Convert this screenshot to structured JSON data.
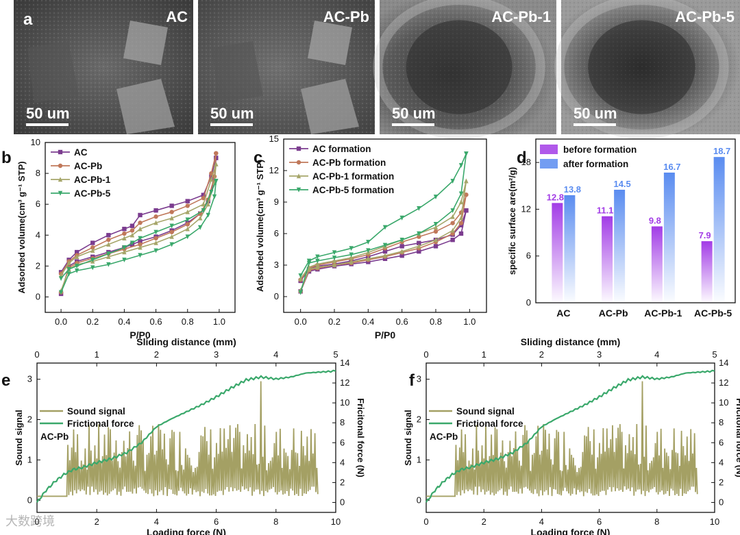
{
  "figure": {
    "panel_letters": [
      "a",
      "b",
      "c",
      "d",
      "e",
      "f"
    ],
    "sem_images": [
      {
        "label": "AC",
        "scale": "50 um"
      },
      {
        "label": "AC-Pb",
        "scale": "50 um"
      },
      {
        "label": "AC-Pb-1",
        "scale": "50 um"
      },
      {
        "label": "AC-Pb-5",
        "scale": "50 um"
      }
    ],
    "watermark": "大数跨境"
  },
  "colors": {
    "AC": "#7b3c8f",
    "AC-Pb": "#c0785a",
    "AC-Pb-1": "#a6a66a",
    "AC-Pb-5": "#3aa86b",
    "before": "#a23ce6",
    "after": "#5a8cf0",
    "sound": "#a4a064",
    "friction": "#3aa86b"
  },
  "chart_data": [
    {
      "id": "b",
      "type": "line",
      "xlabel": "P/P0",
      "ylabel": "Adsorbed volume(cm³ g⁻¹ STP)",
      "xlim": [
        -0.1,
        1.1
      ],
      "ylim": [
        -1,
        10
      ],
      "xticks": [
        "0.0",
        "0.2",
        "0.4",
        "0.6",
        "0.8",
        "1.0"
      ],
      "yticks": [
        "0",
        "2",
        "4",
        "6",
        "8",
        "10"
      ],
      "legend": [
        "AC",
        "AC-Pb",
        "AC-Pb-1",
        "AC-Pb-5"
      ],
      "series": [
        {
          "name": "AC",
          "x": [
            0.0,
            0.05,
            0.1,
            0.2,
            0.3,
            0.4,
            0.45,
            0.5,
            0.6,
            0.7,
            0.8,
            0.88,
            0.93,
            0.97,
            0.98,
            0.98,
            0.95,
            0.9,
            0.8,
            0.7,
            0.6,
            0.5,
            0.45,
            0.4,
            0.3,
            0.2,
            0.1,
            0.05,
            0.0
          ],
          "y": [
            0.2,
            2.0,
            2.3,
            2.6,
            2.9,
            3.2,
            3.4,
            3.6,
            3.9,
            4.3,
            4.8,
            5.4,
            6.2,
            7.5,
            9.0,
            9.0,
            7.8,
            6.6,
            6.2,
            5.9,
            5.6,
            5.3,
            4.6,
            4.4,
            4.0,
            3.5,
            2.9,
            2.4,
            1.6
          ]
        },
        {
          "name": "AC-Pb",
          "x": [
            0.0,
            0.05,
            0.1,
            0.2,
            0.3,
            0.4,
            0.5,
            0.6,
            0.7,
            0.8,
            0.88,
            0.93,
            0.97,
            0.98,
            0.98,
            0.95,
            0.9,
            0.8,
            0.7,
            0.6,
            0.5,
            0.45,
            0.4,
            0.3,
            0.2,
            0.1,
            0.05,
            0.0
          ],
          "y": [
            0.3,
            1.9,
            2.2,
            2.5,
            2.8,
            3.1,
            3.4,
            3.8,
            4.2,
            4.7,
            5.4,
            6.3,
            7.8,
            9.3,
            9.3,
            8.0,
            6.4,
            5.9,
            5.5,
            5.2,
            4.8,
            4.3,
            4.1,
            3.7,
            3.2,
            2.7,
            2.3,
            1.5
          ]
        },
        {
          "name": "AC-Pb-1",
          "x": [
            0.0,
            0.05,
            0.1,
            0.2,
            0.3,
            0.4,
            0.5,
            0.6,
            0.7,
            0.8,
            0.88,
            0.93,
            0.97,
            0.98,
            0.98,
            0.95,
            0.9,
            0.8,
            0.7,
            0.6,
            0.5,
            0.45,
            0.4,
            0.3,
            0.2,
            0.1,
            0.05,
            0.0
          ],
          "y": [
            0.4,
            1.8,
            2.1,
            2.3,
            2.6,
            2.9,
            3.2,
            3.5,
            3.9,
            4.4,
            5.1,
            6.0,
            7.4,
            8.6,
            8.6,
            7.6,
            6.0,
            5.5,
            5.1,
            4.8,
            4.4,
            4.0,
            3.8,
            3.4,
            3.0,
            2.6,
            2.2,
            1.4
          ]
        },
        {
          "name": "AC-Pb-5",
          "x": [
            0.0,
            0.05,
            0.1,
            0.2,
            0.3,
            0.4,
            0.5,
            0.6,
            0.7,
            0.8,
            0.88,
            0.93,
            0.97,
            0.98,
            0.98,
            0.95,
            0.9,
            0.8,
            0.7,
            0.6,
            0.5,
            0.45,
            0.4,
            0.3,
            0.2,
            0.1,
            0.05,
            0.0
          ],
          "y": [
            0.3,
            1.5,
            1.7,
            1.9,
            2.1,
            2.4,
            2.7,
            3.0,
            3.4,
            3.9,
            4.5,
            5.3,
            6.5,
            7.5,
            7.5,
            6.8,
            5.6,
            5.0,
            4.6,
            4.2,
            3.8,
            3.5,
            3.2,
            2.8,
            2.4,
            2.0,
            1.8,
            1.2
          ]
        }
      ]
    },
    {
      "id": "c",
      "type": "line",
      "xlabel": "P/P0",
      "ylabel": "Adsorbed volume(cm³ g⁻¹ STP)",
      "xlim": [
        -0.1,
        1.1
      ],
      "ylim": [
        -1.5,
        15
      ],
      "xticks": [
        "0.0",
        "0.2",
        "0.4",
        "0.6",
        "0.8",
        "1.0"
      ],
      "yticks": [
        "0",
        "3",
        "6",
        "9",
        "12",
        "15"
      ],
      "legend": [
        "AC formation",
        "AC-Pb formation",
        "AC-Pb-1 formation",
        "AC-Pb-5 formation"
      ],
      "series": [
        {
          "name": "AC formation",
          "x": [
            0.0,
            0.05,
            0.1,
            0.2,
            0.3,
            0.4,
            0.5,
            0.6,
            0.7,
            0.8,
            0.9,
            0.95,
            0.98,
            0.98,
            0.95,
            0.9,
            0.8,
            0.7,
            0.6,
            0.5,
            0.4,
            0.3,
            0.2,
            0.1,
            0.05,
            0.0
          ],
          "y": [
            0.5,
            2.4,
            2.6,
            2.9,
            3.1,
            3.3,
            3.6,
            3.9,
            4.3,
            4.8,
            5.4,
            6.0,
            8.2,
            8.2,
            6.8,
            5.9,
            5.4,
            5.1,
            4.8,
            4.3,
            3.8,
            3.4,
            3.1,
            2.9,
            2.6,
            1.5
          ]
        },
        {
          "name": "AC-Pb formation",
          "x": [
            0.0,
            0.05,
            0.1,
            0.2,
            0.3,
            0.4,
            0.5,
            0.6,
            0.7,
            0.8,
            0.9,
            0.95,
            0.98,
            0.98,
            0.95,
            0.9,
            0.8,
            0.7,
            0.6,
            0.5,
            0.4,
            0.3,
            0.2,
            0.1,
            0.05,
            0.0
          ],
          "y": [
            0.5,
            2.5,
            2.7,
            3.0,
            3.2,
            3.5,
            3.8,
            4.2,
            4.6,
            5.2,
            6.0,
            7.0,
            9.7,
            9.7,
            8.0,
            7.0,
            6.2,
            5.7,
            5.2,
            4.6,
            4.0,
            3.6,
            3.3,
            3.0,
            2.7,
            1.6
          ]
        },
        {
          "name": "AC-Pb-1 formation",
          "x": [
            0.0,
            0.05,
            0.1,
            0.2,
            0.3,
            0.4,
            0.5,
            0.6,
            0.7,
            0.8,
            0.9,
            0.95,
            0.98,
            0.98,
            0.95,
            0.9,
            0.8,
            0.7,
            0.6,
            0.5,
            0.4,
            0.3,
            0.2,
            0.1,
            0.05,
            0.0
          ],
          "y": [
            0.6,
            2.6,
            2.8,
            3.0,
            3.3,
            3.6,
            3.9,
            4.3,
            4.8,
            5.4,
            6.3,
            7.5,
            11.0,
            11.0,
            9.0,
            7.6,
            6.6,
            6.0,
            5.4,
            4.8,
            4.2,
            3.7,
            3.4,
            3.1,
            2.8,
            1.7
          ]
        },
        {
          "name": "AC-Pb-5 formation",
          "x": [
            0.0,
            0.05,
            0.1,
            0.2,
            0.3,
            0.4,
            0.5,
            0.6,
            0.7,
            0.8,
            0.9,
            0.95,
            0.98,
            0.98,
            0.95,
            0.9,
            0.8,
            0.7,
            0.6,
            0.5,
            0.4,
            0.3,
            0.2,
            0.1,
            0.05,
            0.0
          ],
          "y": [
            0.4,
            3.2,
            3.4,
            3.7,
            4.0,
            4.4,
            4.9,
            5.4,
            6.0,
            6.9,
            8.2,
            9.8,
            13.6,
            13.6,
            12.5,
            11.0,
            9.5,
            8.4,
            7.5,
            6.6,
            5.2,
            4.6,
            4.2,
            3.8,
            3.4,
            2.0
          ]
        }
      ]
    },
    {
      "id": "d",
      "type": "bar",
      "ylabel": "specific surface are(m²/g)",
      "ylim": [
        0,
        21
      ],
      "yticks": [
        "0",
        "6",
        "12",
        "18"
      ],
      "categories": [
        "AC",
        "AC-Pb",
        "AC-Pb-1",
        "AC-Pb-5"
      ],
      "legend": [
        "before formation",
        "after formation"
      ],
      "series": [
        {
          "name": "before formation",
          "values": [
            12.8,
            11.1,
            9.8,
            7.9
          ],
          "labels": [
            "12.8",
            "11.1",
            "9.8",
            "7.9"
          ]
        },
        {
          "name": "after formation",
          "values": [
            13.8,
            14.5,
            16.7,
            18.7
          ],
          "labels": [
            "13.8",
            "14.5",
            "16.7",
            "18.7"
          ]
        }
      ]
    },
    {
      "id": "e",
      "type": "line",
      "xlabel": "Loading force (N)",
      "ylabel": "Sound signal",
      "y2label": "Fricitonal force (N)",
      "top_xlabel": "Sliding distance (mm)",
      "xlim": [
        0,
        10
      ],
      "ylim": [
        -0.3,
        3.4
      ],
      "y2lim": [
        -1,
        14
      ],
      "xticks": [
        "0",
        "2",
        "4",
        "6",
        "8",
        "10"
      ],
      "top_xticks": [
        "0",
        "1",
        "2",
        "3",
        "4",
        "5"
      ],
      "yticks": [
        "0",
        "1",
        "2",
        "3"
      ],
      "y2ticks": [
        "0",
        "2",
        "4",
        "6",
        "8",
        "10",
        "12",
        "14"
      ],
      "legend": [
        "Sound signal",
        "Frictional force"
      ],
      "annotation": "AC-Pb",
      "friction": {
        "x": [
          0,
          0.3,
          0.6,
          0.9,
          1.2,
          1.5,
          2,
          2.5,
          3,
          3.5,
          4,
          4.5,
          5,
          5.5,
          6,
          6.5,
          7,
          7.5,
          8,
          8.5,
          9,
          9.5,
          10
        ],
        "y": [
          0,
          1.2,
          2.1,
          2.8,
          3.3,
          3.5,
          4.0,
          4.4,
          5.0,
          6.0,
          7.6,
          8.4,
          9.1,
          9.8,
          10.6,
          11.5,
          12.3,
          12.6,
          12.4,
          12.6,
          13.0,
          13.1,
          13.2
        ]
      },
      "sound": {
        "start": 1.0,
        "end": 9.4,
        "spike_x": 7.5,
        "spike_y": 2.95,
        "baseline": 0.1,
        "ramp": [
          [
            0,
            0.1
          ],
          [
            1.0,
            0.1
          ]
        ]
      }
    },
    {
      "id": "f",
      "type": "line",
      "xlabel": "Loading force (N)",
      "ylabel": "Sound signal",
      "y2label": "Fricitonal force (N)",
      "top_xlabel": "Sliding distance (mm)",
      "xlim": [
        0,
        10
      ],
      "ylim": [
        -0.3,
        3.4
      ],
      "y2lim": [
        -1,
        14
      ],
      "xticks": [
        "0",
        "2",
        "4",
        "6",
        "8",
        "10"
      ],
      "top_xticks": [
        "0",
        "1",
        "2",
        "3",
        "4",
        "5"
      ],
      "yticks": [
        "0",
        "1",
        "2",
        "3"
      ],
      "y2ticks": [
        "0",
        "2",
        "4",
        "6",
        "8",
        "10",
        "12",
        "14"
      ],
      "legend": [
        "Sound signal",
        "Frictional force"
      ],
      "annotation": "AC-Pb",
      "friction": {
        "x": [
          0,
          0.3,
          0.6,
          0.9,
          1.2,
          1.5,
          2,
          2.5,
          3,
          3.5,
          4,
          4.5,
          5,
          5.5,
          6,
          6.5,
          7,
          7.5,
          8,
          8.5,
          9,
          9.5,
          10
        ],
        "y": [
          0,
          1.2,
          2.1,
          2.8,
          3.3,
          3.5,
          4.0,
          4.4,
          5.0,
          6.0,
          7.6,
          8.4,
          9.1,
          9.8,
          10.6,
          11.5,
          12.3,
          12.6,
          12.4,
          12.6,
          13.0,
          13.1,
          13.2
        ]
      },
      "sound": {
        "start": 1.0,
        "end": 9.4,
        "spike_x": 7.5,
        "spike_y": 2.95,
        "baseline": 0.1,
        "ramp": [
          [
            0,
            0.1
          ],
          [
            1.0,
            0.1
          ]
        ]
      }
    }
  ]
}
